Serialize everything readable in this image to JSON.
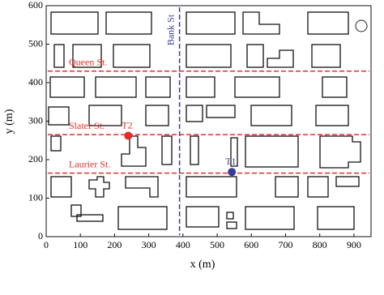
{
  "chart_data": {
    "type": "map",
    "xlabel": "x (m)",
    "ylabel": "y (m)",
    "xlim": [
      0,
      950
    ],
    "ylim": [
      0,
      600
    ],
    "xticks": [
      0,
      100,
      200,
      300,
      400,
      500,
      600,
      700,
      800,
      900
    ],
    "yticks": [
      0,
      100,
      200,
      300,
      400,
      500,
      600
    ],
    "streets": [
      {
        "name": "Queen St.",
        "y": 430,
        "color": "#e0302a"
      },
      {
        "name": "Slater St.",
        "y": 265,
        "color": "#e0302a"
      },
      {
        "name": "Laurier St.",
        "y": 165,
        "color": "#e0302a"
      },
      {
        "name": "Bank St",
        "x": 390,
        "color": "#3a3a9a"
      }
    ],
    "points": [
      {
        "name": "T2",
        "x": 240,
        "y": 262,
        "color": "#e0302a"
      },
      {
        "name": "T1",
        "x": 543,
        "y": 168,
        "color": "#3a3a9a"
      }
    ]
  }
}
